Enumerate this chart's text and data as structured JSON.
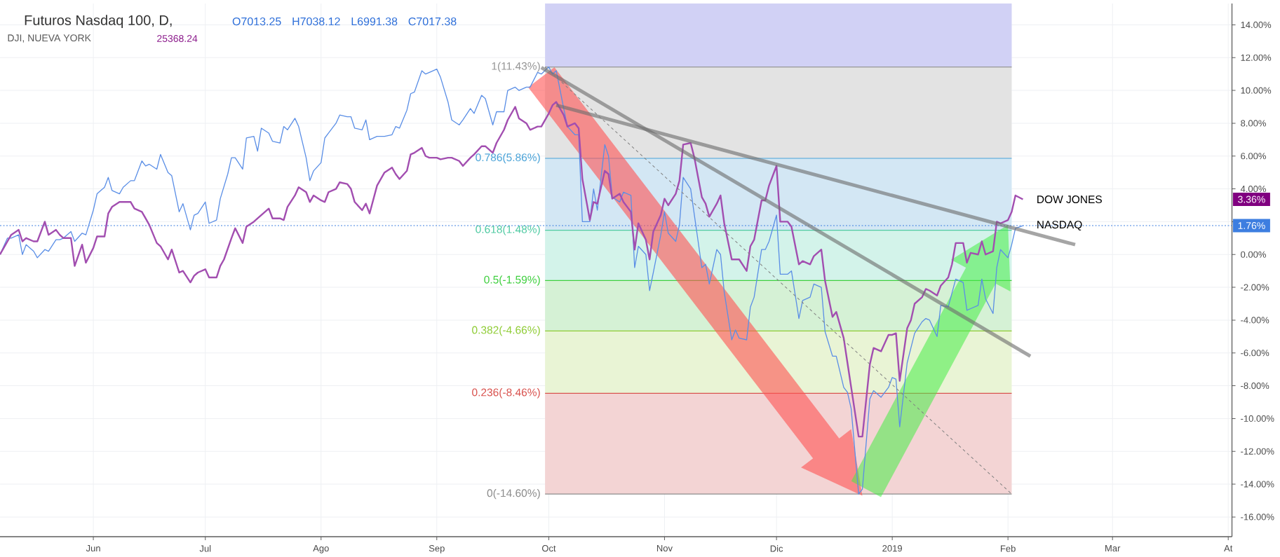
{
  "chart_data": {
    "type": "line",
    "title": "Futuros Nasdaq 100, D,",
    "subtitle": "DJI, NUEVA YORK",
    "annotations": [
      "O7013.25",
      "H7038.12",
      "L6991.38",
      "C7017.38",
      "25368.24",
      "3.36%"
    ],
    "xlim": [
      "2018-05-07",
      "2019-04-02"
    ],
    "ylim": [
      -17.2,
      15.3
    ],
    "xticks": [
      {
        "value": "2018-06-01",
        "label": "Jun"
      },
      {
        "value": "2018-07-01",
        "label": "Jul"
      },
      {
        "value": "2018-08-01",
        "label": "Ago"
      },
      {
        "value": "2018-09-01",
        "label": "Sep"
      },
      {
        "value": "2018-10-01",
        "label": "Oct"
      },
      {
        "value": "2018-11-01",
        "label": "Nov"
      },
      {
        "value": "2018-12-01",
        "label": "Dic"
      },
      {
        "value": "2019-01-01",
        "label": "2019"
      },
      {
        "value": "2019-02-01",
        "label": "Feb"
      },
      {
        "value": "2019-03-01",
        "label": "Mar"
      },
      {
        "value": "2019-04-01",
        "label": "At"
      }
    ],
    "yticks": [
      {
        "value": -16,
        "label": "-16.00%"
      },
      {
        "value": -14,
        "label": "-14.00%"
      },
      {
        "value": -12,
        "label": "-12.00%"
      },
      {
        "value": -10,
        "label": "-10.00%"
      },
      {
        "value": -8,
        "label": "-8.00%"
      },
      {
        "value": -6,
        "label": "-6.00%"
      },
      {
        "value": -4,
        "label": "-4.00%"
      },
      {
        "value": -2,
        "label": "-2.00%"
      },
      {
        "value": 0,
        "label": "0.00%"
      },
      {
        "value": 2,
        "label": null
      },
      {
        "value": 4,
        "label": "4.00%"
      },
      {
        "value": 6,
        "label": "6.00%"
      },
      {
        "value": 8,
        "label": "8.00%"
      },
      {
        "value": 10,
        "label": "10.00%"
      },
      {
        "value": 12,
        "label": "12.00%"
      },
      {
        "value": 14,
        "label": "14.00%"
      }
    ],
    "grid": true,
    "bands": [
      {
        "axis": "y",
        "from": 11.43,
        "to": 15.3,
        "color": "#d1d1f5"
      },
      {
        "axis": "y",
        "from": 5.86,
        "to": 11.43,
        "color": "#e3e3e3"
      },
      {
        "axis": "y",
        "from": 1.48,
        "to": 5.86,
        "color": "#d3e7f4"
      },
      {
        "axis": "y",
        "from": -1.59,
        "to": 1.48,
        "color": "#d3f3ea"
      },
      {
        "axis": "y",
        "from": -4.66,
        "to": -1.59,
        "color": "#d5f1d5"
      },
      {
        "axis": "y",
        "from": -8.46,
        "to": -4.66,
        "color": "#e9f4d5"
      },
      {
        "axis": "y",
        "from": -14.6,
        "to": -8.46,
        "color": "#f3d4d4"
      }
    ],
    "ref_lines": [
      {
        "axis": "y",
        "value": 11.43,
        "label": "1(11.43%)",
        "color": "#969696"
      },
      {
        "axis": "y",
        "value": 5.86,
        "label": "0.786(5.86%)",
        "color": "#4aa3d8"
      },
      {
        "axis": "y",
        "value": 1.48,
        "label": "0.618(1.48%)",
        "color": "#4fcaa2"
      },
      {
        "axis": "y",
        "value": -1.59,
        "label": "0.5(-1.59%)",
        "color": "#3fcf3f"
      },
      {
        "axis": "y",
        "value": -4.66,
        "label": "0.382(-4.66%)",
        "color": "#8fcc35"
      },
      {
        "axis": "y",
        "value": -8.46,
        "label": "0.236(-8.46%)",
        "color": "#d9534f"
      },
      {
        "axis": "y",
        "value": -14.6,
        "label": "0(-14.60%)",
        "color": "#8c8c8c"
      },
      {
        "axis": "y",
        "value": 1.76,
        "label": "1.76%",
        "color": "#3d7ee0",
        "line_style": "dotted"
      }
    ],
    "series": [
      {
        "name": "NASDAQ",
        "color": "#5a8ee6",
        "x": [
          "2018-05-07",
          "2018-05-09",
          "2018-05-10",
          "2018-05-12",
          "2018-05-13",
          "2018-05-14",
          "2018-05-16",
          "2018-05-17",
          "2018-05-19",
          "2018-05-20",
          "2018-05-22",
          "2018-05-23",
          "2018-05-24",
          "2018-05-26",
          "2018-05-27",
          "2018-05-29",
          "2018-05-30",
          "2018-06-01",
          "2018-06-02",
          "2018-06-04",
          "2018-06-05",
          "2018-06-06",
          "2018-06-08",
          "2018-06-09",
          "2018-06-11",
          "2018-06-12",
          "2018-06-14",
          "2018-06-15",
          "2018-06-16",
          "2018-06-18",
          "2018-06-19",
          "2018-06-21",
          "2018-06-22",
          "2018-06-24",
          "2018-06-25",
          "2018-06-27",
          "2018-06-28",
          "2018-06-29",
          "2018-07-01",
          "2018-07-02",
          "2018-07-04",
          "2018-07-05",
          "2018-07-07",
          "2018-07-08",
          "2018-07-09",
          "2018-07-11",
          "2018-07-12",
          "2018-07-14",
          "2018-07-15",
          "2018-07-16",
          "2018-07-18",
          "2018-07-19",
          "2018-07-21",
          "2018-07-22",
          "2018-07-23",
          "2018-07-25",
          "2018-07-26",
          "2018-07-28",
          "2018-07-29",
          "2018-07-30",
          "2018-08-01",
          "2018-08-02",
          "2018-08-03",
          "2018-08-05",
          "2018-08-06",
          "2018-08-08",
          "2018-08-09",
          "2018-08-10",
          "2018-08-12",
          "2018-08-13",
          "2018-08-14",
          "2018-08-16",
          "2018-08-17",
          "2018-08-18",
          "2018-08-20",
          "2018-08-21",
          "2018-08-22",
          "2018-08-24",
          "2018-08-25",
          "2018-08-26",
          "2018-08-28",
          "2018-08-29",
          "2018-08-30",
          "2018-09-01",
          "2018-09-02",
          "2018-09-04",
          "2018-09-05",
          "2018-09-07",
          "2018-09-08",
          "2018-09-10",
          "2018-09-11",
          "2018-09-13",
          "2018-09-14",
          "2018-09-16",
          "2018-09-17",
          "2018-09-19",
          "2018-09-20",
          "2018-09-22",
          "2018-09-23",
          "2018-09-25",
          "2018-09-26",
          "2018-09-28",
          "2018-09-29",
          "2018-10-01",
          "2018-10-02",
          "2018-10-03",
          "2018-10-05",
          "2018-10-06",
          "2018-10-08",
          "2018-10-09",
          "2018-10-10",
          "2018-10-12",
          "2018-10-13",
          "2018-10-14",
          "2018-10-16",
          "2018-10-17",
          "2018-10-18",
          "2018-10-20",
          "2018-10-21",
          "2018-10-23",
          "2018-10-24",
          "2018-10-25",
          "2018-10-27",
          "2018-10-28",
          "2018-10-29",
          "2018-10-31",
          "2018-11-01",
          "2018-11-02",
          "2018-11-04",
          "2018-11-05",
          "2018-11-06",
          "2018-11-08",
          "2018-11-09",
          "2018-11-11",
          "2018-11-12",
          "2018-11-13",
          "2018-11-15",
          "2018-11-16",
          "2018-11-17",
          "2018-11-19",
          "2018-11-20",
          "2018-11-21",
          "2018-11-23",
          "2018-11-24",
          "2018-11-25",
          "2018-11-27",
          "2018-11-28",
          "2018-11-29",
          "2018-12-01",
          "2018-12-02",
          "2018-12-04",
          "2018-12-05",
          "2018-12-07",
          "2018-12-08",
          "2018-12-10",
          "2018-12-11",
          "2018-12-13",
          "2018-12-14",
          "2018-12-16",
          "2018-12-17",
          "2018-12-19",
          "2018-12-20",
          "2018-12-21",
          "2018-12-23",
          "2018-12-24",
          "2018-12-26",
          "2018-12-27",
          "2018-12-29",
          "2018-12-31",
          "2019-01-01",
          "2019-01-02",
          "2019-01-03",
          "2019-01-05",
          "2019-01-06",
          "2019-01-07",
          "2019-01-09",
          "2019-01-10",
          "2019-01-11",
          "2019-01-13",
          "2019-01-14",
          "2019-01-16",
          "2019-01-18",
          "2019-01-20",
          "2019-01-21",
          "2019-01-22",
          "2019-01-24",
          "2019-01-25",
          "2019-01-26",
          "2019-01-28",
          "2019-01-29",
          "2019-01-30",
          "2019-02-01",
          "2019-02-02",
          "2019-02-03",
          "2019-02-05"
        ],
        "values": [
          0,
          1.0,
          1.0,
          1.2,
          0,
          0.6,
          0.2,
          -0.2,
          0.3,
          0.2,
          0.9,
          0.9,
          1.0,
          1.4,
          0.8,
          1.3,
          1.2,
          2.7,
          3.7,
          4.1,
          4.7,
          3.9,
          3.7,
          4.1,
          4.5,
          4.5,
          5.7,
          5.4,
          5.5,
          5.2,
          6.1,
          5.0,
          4.8,
          2.6,
          3.1,
          1.5,
          2.4,
          2.5,
          3.2,
          1.9,
          2.1,
          3.4,
          4.9,
          5.9,
          5.9,
          5.2,
          7.1,
          7.2,
          6.3,
          7.7,
          7.4,
          6.9,
          6.8,
          7.8,
          7.6,
          8.3,
          7.8,
          5.9,
          4.5,
          5.1,
          5.6,
          7.1,
          7.4,
          8.0,
          8.5,
          8.4,
          8.4,
          7.7,
          7.6,
          8.2,
          7.0,
          7.2,
          7.2,
          7.2,
          7.3,
          7.8,
          7.7,
          8.8,
          9.8,
          9.9,
          11.2,
          11.0,
          11.1,
          11.3,
          10.8,
          9.3,
          8.2,
          7.9,
          8.2,
          8.9,
          8.6,
          9.7,
          9.5,
          7.9,
          8.7,
          8.7,
          10.0,
          10.2,
          10.0,
          10.2,
          10.2,
          11.1,
          11.0,
          11.43,
          11.0,
          11.2,
          8.9,
          7.8,
          7.3,
          7.3,
          2.0,
          2.0,
          4.0,
          2.7,
          6.7,
          6.0,
          3.5,
          3.2,
          3.8,
          3.6,
          -0.8,
          0.5,
          0.0,
          -2.2,
          -1.1,
          1.2,
          2.6,
          1.3,
          0.8,
          1.8,
          4.7,
          4.0,
          2.4,
          -0.8,
          -0.6,
          -1.8,
          0.3,
          0.0,
          -2.3,
          -5.2,
          -4.6,
          -5.1,
          -5.2,
          -3.2,
          -2.6,
          0.3,
          0.3,
          0.8,
          2.4,
          -1.2,
          -1.2,
          -1.0,
          -3.9,
          -2.8,
          -2.6,
          -1.8,
          -2.0,
          -4.7,
          -6.2,
          -6.2,
          -8.1,
          -8.4,
          -9.4,
          -14.6,
          -14.3,
          -8.8,
          -8.3,
          -8.7,
          -8.1,
          -7.5,
          -7.6,
          -10.5,
          -6.6,
          -5.7,
          -4.8,
          -4.1,
          -3.9,
          -4.0,
          -5.0,
          -3.1,
          -3.2,
          -1.5,
          -1.7,
          -3.4,
          -3.3,
          -3.1,
          -1.5,
          -2.7,
          -3.6,
          -0.8,
          0.3,
          -0.2,
          0.6,
          1.6,
          1.76
        ]
      },
      {
        "name": "DOW JONES",
        "color": "#a24eb0",
        "x": [
          "2018-05-07",
          "2018-05-09",
          "2018-05-10",
          "2018-05-12",
          "2018-05-13",
          "2018-05-14",
          "2018-05-16",
          "2018-05-17",
          "2018-05-19",
          "2018-05-20",
          "2018-05-22",
          "2018-05-23",
          "2018-05-24",
          "2018-05-26",
          "2018-05-27",
          "2018-05-29",
          "2018-05-30",
          "2018-06-01",
          "2018-06-02",
          "2018-06-04",
          "2018-06-05",
          "2018-06-06",
          "2018-06-08",
          "2018-06-09",
          "2018-06-11",
          "2018-06-12",
          "2018-06-14",
          "2018-06-15",
          "2018-06-16",
          "2018-06-18",
          "2018-06-19",
          "2018-06-21",
          "2018-06-22",
          "2018-06-24",
          "2018-06-25",
          "2018-06-27",
          "2018-06-28",
          "2018-06-29",
          "2018-07-01",
          "2018-07-02",
          "2018-07-04",
          "2018-07-05",
          "2018-07-06",
          "2018-07-08",
          "2018-07-09",
          "2018-07-11",
          "2018-07-12",
          "2018-07-14",
          "2018-07-15",
          "2018-07-16",
          "2018-07-18",
          "2018-07-19",
          "2018-07-21",
          "2018-07-22",
          "2018-07-23",
          "2018-07-25",
          "2018-07-26",
          "2018-07-28",
          "2018-07-29",
          "2018-07-30",
          "2018-08-01",
          "2018-08-02",
          "2018-08-03",
          "2018-08-05",
          "2018-08-06",
          "2018-08-08",
          "2018-08-09",
          "2018-08-10",
          "2018-08-12",
          "2018-08-13",
          "2018-08-14",
          "2018-08-16",
          "2018-08-17",
          "2018-08-18",
          "2018-08-20",
          "2018-08-21",
          "2018-08-22",
          "2018-08-24",
          "2018-08-25",
          "2018-08-26",
          "2018-08-28",
          "2018-08-29",
          "2018-08-30",
          "2018-09-01",
          "2018-09-02",
          "2018-09-04",
          "2018-09-05",
          "2018-09-07",
          "2018-09-08",
          "2018-09-10",
          "2018-09-11",
          "2018-09-13",
          "2018-09-14",
          "2018-09-16",
          "2018-09-17",
          "2018-09-19",
          "2018-09-20",
          "2018-09-22",
          "2018-09-23",
          "2018-09-25",
          "2018-09-26",
          "2018-09-28",
          "2018-09-29",
          "2018-10-01",
          "2018-10-02",
          "2018-10-03",
          "2018-10-05",
          "2018-10-06",
          "2018-10-08",
          "2018-10-09",
          "2018-10-10",
          "2018-10-12",
          "2018-10-13",
          "2018-10-14",
          "2018-10-16",
          "2018-10-17",
          "2018-10-18",
          "2018-10-20",
          "2018-10-21",
          "2018-10-23",
          "2018-10-24",
          "2018-10-25",
          "2018-10-27",
          "2018-10-28",
          "2018-10-29",
          "2018-10-31",
          "2018-11-01",
          "2018-11-02",
          "2018-11-04",
          "2018-11-05",
          "2018-11-06",
          "2018-11-08",
          "2018-11-09",
          "2018-11-11",
          "2018-11-12",
          "2018-11-13",
          "2018-11-15",
          "2018-11-16",
          "2018-11-17",
          "2018-11-19",
          "2018-11-20",
          "2018-11-21",
          "2018-11-23",
          "2018-11-24",
          "2018-11-25",
          "2018-11-27",
          "2018-11-28",
          "2018-11-29",
          "2018-12-01",
          "2018-12-02",
          "2018-12-04",
          "2018-12-05",
          "2018-12-07",
          "2018-12-08",
          "2018-12-10",
          "2018-12-11",
          "2018-12-13",
          "2018-12-14",
          "2018-12-16",
          "2018-12-17",
          "2018-12-19",
          "2018-12-20",
          "2018-12-21",
          "2018-12-23",
          "2018-12-24",
          "2018-12-26",
          "2018-12-27",
          "2018-12-29",
          "2018-12-31",
          "2019-01-01",
          "2019-01-02",
          "2019-01-03",
          "2019-01-05",
          "2019-01-06",
          "2019-01-07",
          "2019-01-09",
          "2019-01-10",
          "2019-01-11",
          "2019-01-13",
          "2019-01-14",
          "2019-01-16",
          "2019-01-17",
          "2019-01-18",
          "2019-01-20",
          "2019-01-21",
          "2019-01-22",
          "2019-01-24",
          "2019-01-25",
          "2019-01-26",
          "2019-01-28",
          "2019-01-29",
          "2019-01-30",
          "2019-02-01",
          "2019-02-02",
          "2019-02-03",
          "2019-02-05"
        ],
        "values": [
          0,
          0.8,
          1.2,
          1.5,
          0.8,
          1.0,
          0.8,
          0.8,
          2.0,
          1.2,
          1.5,
          1.2,
          1.0,
          1.0,
          -0.7,
          0.6,
          -0.5,
          0.4,
          1.1,
          1.1,
          2.5,
          2.9,
          3.2,
          3.2,
          3.2,
          2.8,
          2.6,
          2.2,
          1.8,
          0.7,
          0.5,
          -0.3,
          0.3,
          -1.1,
          -1.0,
          -1.7,
          -1.3,
          -1.1,
          -0.9,
          -1.4,
          -1.4,
          -0.7,
          -0.3,
          1.0,
          1.6,
          0.7,
          1.7,
          2.0,
          2.2,
          2.4,
          2.8,
          2.2,
          2.2,
          2.1,
          2.9,
          3.6,
          4.1,
          3.8,
          3.2,
          3.6,
          3.3,
          3.2,
          3.8,
          4.0,
          4.4,
          4.3,
          4.0,
          3.2,
          2.7,
          3.1,
          2.5,
          4.2,
          4.6,
          5.0,
          5.3,
          4.9,
          4.6,
          5.1,
          6.1,
          6.2,
          6.5,
          6.0,
          5.9,
          5.9,
          5.8,
          5.9,
          5.9,
          5.7,
          5.4,
          5.9,
          6.1,
          6.6,
          6.6,
          6.2,
          6.8,
          7.6,
          8.2,
          9.0,
          8.3,
          8.0,
          7.6,
          7.8,
          7.8,
          8.6,
          9.1,
          9.3,
          8.5,
          7.8,
          8.0,
          7.7,
          4.6,
          2.1,
          3.2,
          3.1,
          5.1,
          4.9,
          3.4,
          3.7,
          3.2,
          2.6,
          0.3,
          1.9,
          0.9,
          -0.3,
          1.4,
          2.4,
          3.4,
          3.0,
          3.7,
          4.5,
          6.7,
          6.8,
          5.9,
          3.5,
          3.1,
          2.3,
          3.1,
          3.6,
          1.9,
          -0.3,
          -0.3,
          -0.3,
          -1.0,
          0.5,
          0.9,
          3.3,
          3.3,
          4.2,
          5.4,
          2.0,
          2.0,
          1.7,
          -0.6,
          -0.4,
          -0.6,
          -0.1,
          0.3,
          -1.6,
          -3.8,
          -3.5,
          -5.1,
          -6.6,
          -8.1,
          -11.1,
          -11.1,
          -6.7,
          -5.7,
          -5.9,
          -4.9,
          -4.9,
          -4.8,
          -7.7,
          -4.5,
          -4.0,
          -3.0,
          -2.6,
          -2.1,
          -2.2,
          -2.5,
          -1.9,
          -1.4,
          -0.6,
          0.7,
          0.7,
          -0.5,
          0.1,
          0.0,
          0.8,
          0.0,
          0.2,
          2.0,
          1.9,
          2.1,
          2.6,
          3.6,
          3.36
        ]
      },
      {
        "color": "#6e6e6e",
        "x": [
          "2018-10-03",
          "2019-02-19"
        ],
        "values": [
          9.1,
          0.6
        ]
      },
      {
        "color": "#6e6e6e",
        "x": [
          "2018-09-29",
          "2019-02-07"
        ],
        "values": [
          11.4,
          -6.2
        ]
      },
      {
        "color": "#808080",
        "line_style": "dashed",
        "x": [
          "2018-09-30",
          "2019-02-02"
        ],
        "values": [
          11.43,
          -14.6
        ]
      }
    ]
  }
}
